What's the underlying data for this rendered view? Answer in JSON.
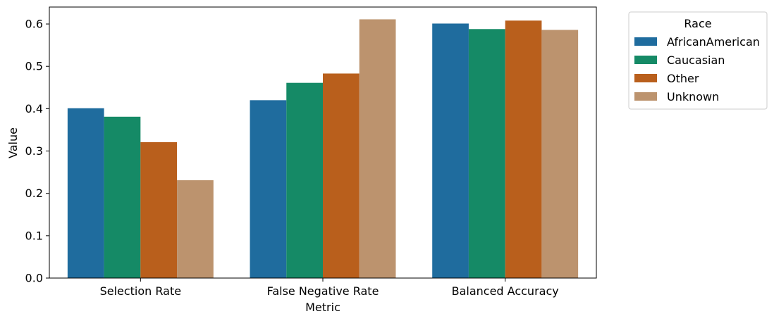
{
  "chart_data": {
    "type": "bar",
    "xlabel": "Metric",
    "ylabel": "Value",
    "categories": [
      "Selection Rate",
      "False Negative Rate",
      "Balanced Accuracy"
    ],
    "ylim": [
      0,
      0.64
    ],
    "yticks": [
      "0.0",
      "0.1",
      "0.2",
      "0.3",
      "0.4",
      "0.5",
      "0.6"
    ],
    "grid": false,
    "legend": {
      "title": "Race",
      "placement": "outside-top-right"
    },
    "series": [
      {
        "name": "AfricanAmerican",
        "color": "#1f6c9e",
        "values": [
          0.401,
          0.42,
          0.601
        ]
      },
      {
        "name": "Caucasian",
        "color": "#158a66",
        "values": [
          0.381,
          0.461,
          0.588
        ]
      },
      {
        "name": "Other",
        "color": "#b95f1c",
        "values": [
          0.321,
          0.483,
          0.608
        ]
      },
      {
        "name": "Unknown",
        "color": "#bc936e",
        "values": [
          0.231,
          0.611,
          0.586
        ]
      }
    ]
  }
}
